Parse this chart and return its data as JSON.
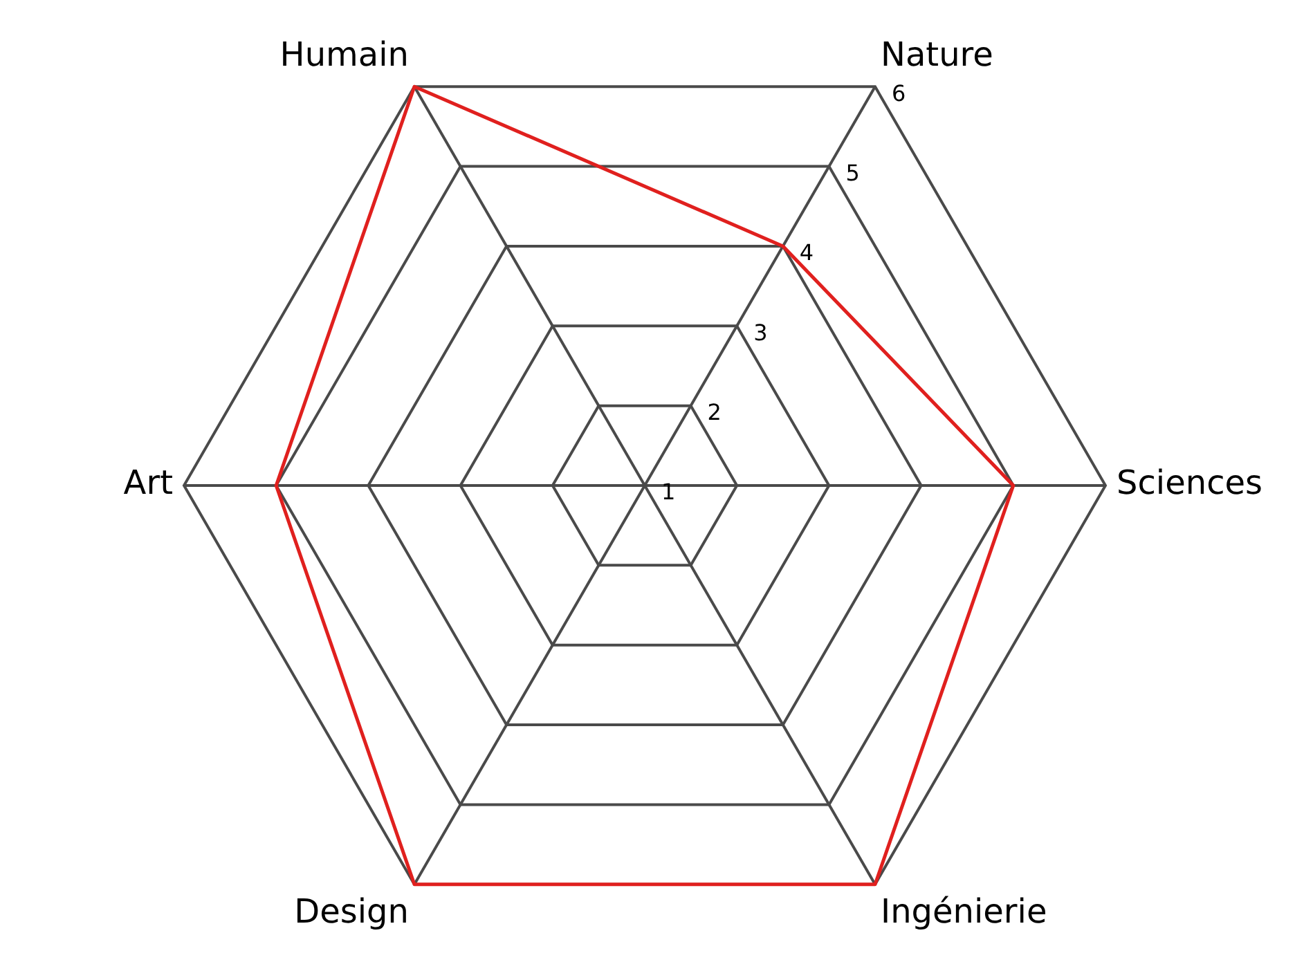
{
  "chart_data": {
    "type": "radar",
    "categories": [
      "Nature",
      "Sciences",
      "Ingénierie",
      "Design",
      "Art",
      "Humain"
    ],
    "series": [
      {
        "color": "#e0201e",
        "values": [
          4,
          5,
          6,
          6,
          5,
          6
        ]
      }
    ],
    "ylim": [
      1,
      6
    ],
    "yticks": [
      1,
      2,
      3,
      4,
      5,
      6
    ],
    "grid": true,
    "legend": false,
    "marker": "none",
    "line_style": "solid"
  }
}
